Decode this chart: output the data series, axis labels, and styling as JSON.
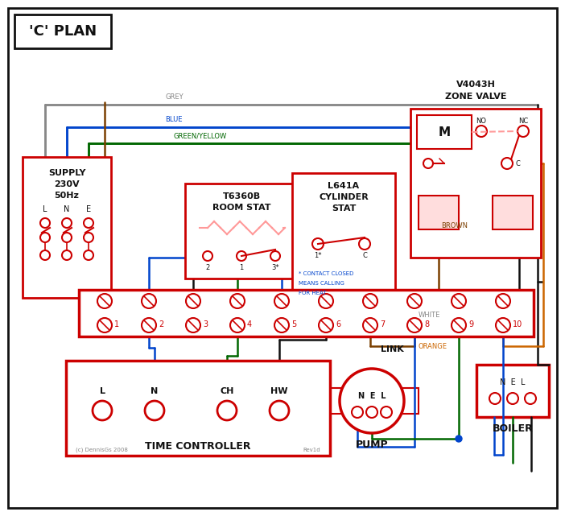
{
  "bg": "#ffffff",
  "red": "#cc0000",
  "blue": "#0044cc",
  "green": "#006600",
  "brown": "#7B3F00",
  "orange": "#CC6600",
  "black": "#111111",
  "grey": "#888888",
  "white_wire": "#888888",
  "pink": "#FF9999",
  "lt_red_fill": "#ffdddd",
  "title": "'C' PLAN",
  "supply_text": [
    "SUPPLY",
    "230V",
    "50Hz"
  ],
  "lne": [
    "L",
    "N",
    "E"
  ],
  "zone_valve_title": [
    "V4043H",
    "ZONE VALVE"
  ],
  "room_stat_title": [
    "T6360B",
    "ROOM STAT"
  ],
  "cyl_stat_title": [
    "L641A",
    "CYLINDER",
    "STAT"
  ],
  "cyl_note": [
    "* CONTACT CLOSED",
    "MEANS CALLING",
    "FOR HEAT"
  ],
  "tc_label": "TIME CONTROLLER",
  "tc_terminals": [
    "L",
    "N",
    "CH",
    "HW"
  ],
  "pump_label": "PUMP",
  "boiler_label": "BOILER",
  "nel": "N  E  L",
  "wire_labels": [
    "GREY",
    "BLUE",
    "GREEN/YELLOW",
    "BROWN",
    "WHITE",
    "ORANGE"
  ],
  "link_label": "LINK",
  "copyright": "(c) DennisGs 2008",
  "rev": "Rev1d",
  "motor": "M",
  "no_label": "NO",
  "nc_label": "NC",
  "c_label": "C"
}
